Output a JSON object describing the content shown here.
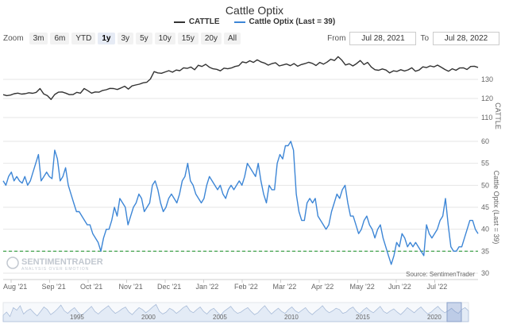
{
  "title": "Cattle Optix",
  "legend": [
    {
      "label": "CATTLE",
      "color": "#333333"
    },
    {
      "label": "Cattle Optix (Last = 39)",
      "color": "#3d86d6"
    }
  ],
  "zoom": {
    "label": "Zoom",
    "buttons": [
      "3m",
      "6m",
      "YTD",
      "1y",
      "3y",
      "5y",
      "10y",
      "15y",
      "20y",
      "All"
    ],
    "active": "1y"
  },
  "range": {
    "from_label": "From",
    "from_value": "Jul 28, 2021",
    "to_label": "To",
    "to_value": "Jul 28, 2022"
  },
  "credits": "Source: SentimenTrader",
  "watermark": {
    "main": "SENTIMENTRADER",
    "sub": "ANALYSIS OVER EMOTION"
  },
  "colors": {
    "cattle": "#333333",
    "optix": "#3d86d6",
    "threshold": "#2e9b3a",
    "navigator": "#a9bcd8"
  },
  "chart_data": {
    "type": "line",
    "x_labels": [
      "Aug '21",
      "Sep '21",
      "Oct '21",
      "Nov '21",
      "Dec '21",
      "Jan '22",
      "Feb '22",
      "Mar '22",
      "Apr '22",
      "May '22",
      "Jun '22",
      "Jul '22"
    ],
    "navigator_labels": [
      "1995",
      "2000",
      "2005",
      "2010",
      "2015",
      "2020"
    ],
    "series": [
      {
        "name": "CATTLE",
        "axis_title": "CATTLE",
        "ylim": [
          110,
          145
        ],
        "ticks": [
          110,
          120,
          130
        ],
        "values": [
          122,
          121.5,
          121.8,
          122.5,
          122.8,
          122.3,
          122.5,
          123,
          122.7,
          123.2,
          125.2,
          122.4,
          121.5,
          119.5,
          122.1,
          123.3,
          123.4,
          122.8,
          122,
          122.1,
          123.2,
          122.8,
          125.2,
          124.1,
          122.8,
          123.4,
          123.3,
          124.2,
          124.6,
          125.3,
          125.2,
          124.7,
          125.5,
          126.4,
          124.9,
          126.6,
          127.1,
          127.5,
          128.2,
          128.5,
          130.2,
          134.1,
          133.4,
          133.2,
          133.9,
          134.6,
          133.8,
          134.9,
          134.6,
          136.1,
          135.8,
          136.5,
          135.1,
          137.4,
          136.8,
          137.9,
          136.4,
          135.6,
          135.3,
          134.5,
          135.9,
          135.6,
          136,
          136.8,
          137.2,
          139.2,
          138.7,
          139.8,
          138.9,
          140.3,
          139.2,
          138.6,
          137.5,
          138.3,
          138.7,
          137.1,
          137.6,
          138.1,
          137.2,
          138.3,
          136.9,
          137.8,
          138.3,
          139,
          138.4,
          137.3,
          138.9,
          138,
          139.1,
          140.6,
          139.9,
          141.9,
          140.1,
          137.6,
          138.2,
          137.1,
          138.3,
          139.9,
          137.8,
          138.9,
          136.5,
          135.1,
          134.8,
          135.5,
          134.9,
          133.4,
          134.5,
          134.2,
          135.1,
          134.4,
          135,
          136.1,
          134.3,
          134.9,
          136.6,
          136.2,
          137.1,
          136.6,
          137.5,
          136.4,
          135.2,
          134.3,
          135.6,
          134.8,
          136,
          136.1,
          135.2,
          136.8,
          136.9,
          136.3
        ]
      },
      {
        "name": "Cattle Optix (Last = 39)",
        "axis_title": "Cattle Optix (Last = 39)",
        "ylim": [
          30,
          60
        ],
        "ticks": [
          30,
          35,
          40,
          45,
          50,
          55,
          60
        ],
        "threshold": 35,
        "values": [
          51,
          50,
          52,
          53,
          51,
          52,
          51,
          50.5,
          52,
          50,
          51,
          53,
          55,
          57,
          51,
          52,
          53,
          52,
          51.5,
          58,
          56,
          51,
          52,
          54,
          50,
          48,
          46,
          44,
          44,
          43,
          42,
          41,
          41,
          39,
          38,
          37,
          35,
          38,
          40,
          40,
          42,
          45,
          43,
          47,
          46,
          45,
          41,
          43,
          45,
          46,
          48,
          47,
          44,
          45,
          46,
          50,
          51,
          49,
          46,
          44,
          45,
          47,
          48,
          47,
          46,
          48,
          51,
          52,
          55,
          51,
          50,
          48,
          47,
          46,
          47,
          50,
          52,
          51,
          50,
          49,
          50,
          48,
          47,
          49,
          50,
          49,
          50,
          51,
          50,
          52,
          55,
          54,
          53,
          52,
          55,
          51,
          48,
          46,
          50,
          49,
          49,
          55,
          57,
          56,
          59,
          59,
          60,
          58,
          48,
          44,
          42,
          42,
          46,
          47,
          46,
          47,
          43,
          42,
          41,
          40,
          41,
          44,
          46,
          48,
          47,
          49,
          50,
          46,
          43,
          43,
          41,
          39,
          40,
          42,
          43,
          41,
          40,
          38,
          40,
          41,
          38,
          36,
          34,
          32,
          34,
          37,
          36,
          39,
          38,
          36,
          37,
          36,
          37,
          36,
          35,
          34,
          41,
          39,
          38,
          39,
          40,
          42,
          43,
          47,
          41,
          36,
          35,
          35,
          36,
          36,
          38,
          40,
          42,
          42,
          40,
          39
        ]
      }
    ],
    "navigator": {
      "type": "area",
      "values": [
        40,
        45,
        38,
        52,
        48,
        55,
        42,
        47,
        50,
        44,
        39,
        46,
        53,
        49,
        41,
        45,
        50,
        56,
        47,
        43,
        48,
        52,
        45,
        40,
        44,
        49,
        54,
        46,
        42,
        47,
        51,
        55,
        48,
        43,
        46,
        50,
        53,
        45,
        41,
        47,
        52,
        49,
        44,
        48,
        53,
        57,
        46,
        42,
        45,
        51,
        48,
        43,
        47,
        52,
        55,
        47,
        44,
        49,
        53,
        46,
        42,
        48,
        51,
        45,
        40,
        46,
        50,
        54,
        47,
        43,
        45,
        49,
        52,
        46,
        41,
        44,
        50,
        55,
        48,
        42,
        47,
        51,
        46,
        43,
        49,
        53,
        47,
        44,
        48,
        52,
        45,
        41,
        46,
        50,
        55,
        48,
        44,
        47,
        51,
        49,
        43,
        45,
        50,
        53,
        46,
        42,
        48,
        52,
        47,
        44,
        49,
        54,
        46,
        43,
        47,
        50,
        45,
        41,
        46,
        52,
        48,
        44,
        49,
        53,
        47,
        42,
        45,
        50,
        54,
        48,
        44,
        47,
        51,
        46,
        43,
        49,
        52,
        47
      ]
    }
  }
}
